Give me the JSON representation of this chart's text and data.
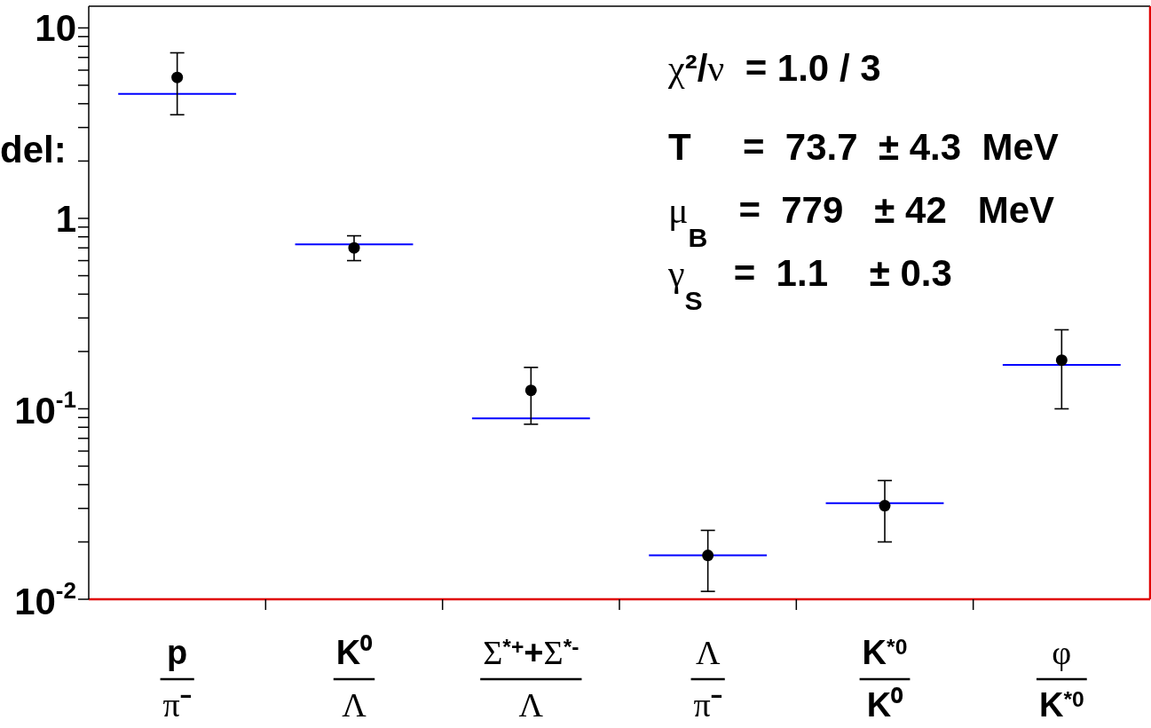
{
  "chart_data": {
    "type": "scatter",
    "categories": [
      null,
      null,
      null,
      null,
      "p\nπ⁻",
      null,
      null,
      null,
      null,
      null,
      null,
      null,
      null,
      "K⁰\nΛ",
      null,
      null,
      null,
      null,
      null,
      null,
      null,
      null,
      "Σ$^{*+}$+Σ$^{*-}$\nΛ",
      null,
      null,
      null,
      null,
      null,
      null,
      null,
      null,
      "Λ\nπ⁻",
      null,
      null,
      null,
      null,
      null,
      null,
      null,
      null,
      "K$^{*0}$\nK⁰",
      null,
      null,
      null,
      null,
      null,
      null,
      null,
      null,
      "φ\nK$^{*0}$",
      null,
      null,
      null,
      null
    ],
    "series": [
      {
        "type": "line",
        "color": "#0000ff",
        "marker": "none",
        "values": [
          null,
          4.5,
          4.5,
          4.5,
          4.5,
          4.5,
          4.5,
          4.5,
          null,
          null,
          0.73,
          0.73,
          0.73,
          0.73,
          0.73,
          0.73,
          0.73,
          null,
          null,
          0.089,
          0.089,
          0.089,
          0.089,
          0.089,
          0.089,
          0.089,
          null,
          null,
          0.017,
          0.017,
          0.017,
          0.017,
          0.017,
          0.017,
          0.017,
          null,
          null,
          0.032,
          0.032,
          0.032,
          0.032,
          0.032,
          0.032,
          0.032,
          null,
          null,
          0.17,
          0.17,
          0.17,
          0.17,
          0.17,
          0.17,
          0.17,
          null
        ]
      },
      {
        "color": "#000000",
        "marker": "circle",
        "values": [
          null,
          null,
          null,
          null,
          5.5,
          null,
          null,
          null,
          null,
          null,
          null,
          null,
          null,
          0.7,
          null,
          null,
          null,
          null,
          null,
          null,
          null,
          null,
          0.125,
          null,
          null,
          null,
          null,
          null,
          null,
          null,
          null,
          0.017,
          null,
          null,
          null,
          null,
          null,
          null,
          null,
          null,
          0.031,
          null,
          null,
          null,
          null,
          null,
          null,
          null,
          null,
          0.18,
          null,
          null,
          null,
          null
        ],
        "errors": [
          null,
          null,
          null,
          null,
          [
            3.5,
            7.4
          ],
          null,
          null,
          null,
          null,
          null,
          null,
          null,
          null,
          [
            0.6,
            0.81
          ],
          null,
          null,
          null,
          null,
          null,
          null,
          null,
          null,
          [
            0.083,
            0.165
          ],
          null,
          null,
          null,
          null,
          null,
          null,
          null,
          null,
          [
            0.011,
            0.023
          ],
          null,
          null,
          null,
          null,
          null,
          null,
          null,
          null,
          [
            0.02,
            0.042
          ],
          null,
          null,
          null,
          null,
          null,
          null,
          null,
          null,
          [
            0.1,
            0.26
          ],
          null,
          null,
          null,
          null
        ]
      }
    ],
    "ylim": [
      0.01,
      13
    ],
    "yticks": [
      {
        "value": 0.01,
        "label": "10$^{-2}$"
      },
      {
        "value": 0.02,
        "label": null
      },
      {
        "value": 0.03,
        "label": null
      },
      {
        "value": 0.04,
        "label": null
      },
      {
        "value": 0.05,
        "label": null
      },
      {
        "value": 0.06,
        "label": null
      },
      {
        "value": 0.07,
        "label": null
      },
      {
        "value": 0.08,
        "label": null
      },
      {
        "value": 0.09,
        "label": null
      },
      {
        "value": 0.1,
        "label": "10$^{-1}$"
      },
      {
        "value": 0.2,
        "label": null
      },
      {
        "value": 0.3,
        "label": null
      },
      {
        "value": 0.4,
        "label": null
      },
      {
        "value": 0.5,
        "label": null
      },
      {
        "value": 0.6,
        "label": null
      },
      {
        "value": 0.7,
        "label": null
      },
      {
        "value": 0.8,
        "label": null
      },
      {
        "value": 0.9,
        "label": null
      },
      1,
      {
        "value": 2,
        "label": null
      },
      {
        "value": 3,
        "label": null
      },
      {
        "value": 4,
        "label": null
      },
      {
        "value": 5,
        "label": null
      },
      {
        "value": 6,
        "label": null
      },
      {
        "value": 7,
        "label": null
      },
      {
        "value": 8,
        "label": null
      },
      {
        "value": 9,
        "label": null
      },
      10
    ],
    "log": true,
    "annotations": [
      "χ²/ν  = 1.0 / 3",
      "T     =  73.7  ± 4.3  MeV",
      "μ$_{B}$   =  779   ± 42   MeV",
      "γ$_{S}$   =  1.1    ± 0.3",
      "del:"
    ]
  }
}
